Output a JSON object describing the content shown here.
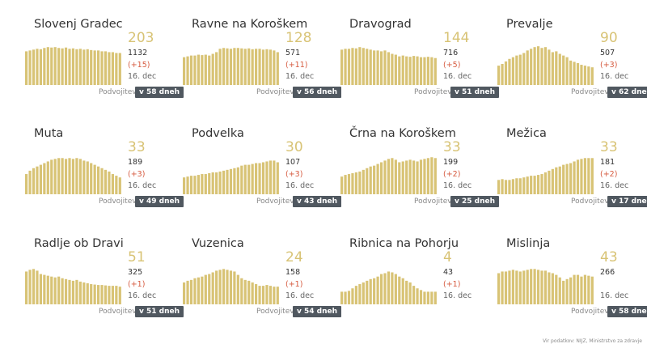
{
  "badge_prefix": "Podvojitev",
  "date_label": "16. dec",
  "bar_color": "#d8c375",
  "accent_color": "#d65a3f",
  "footer_text": "Vir podatkov: NIJZ, Ministrstvo za zdravje",
  "chart_data": [
    {
      "type": "bar",
      "title": "Slovenj Gradec",
      "latest": "203",
      "total": "1132",
      "delta": "(+15)",
      "doubling": "v 58 dneh",
      "values": [
        0.8,
        0.82,
        0.84,
        0.86,
        0.85,
        0.88,
        0.9,
        0.89,
        0.9,
        0.88,
        0.87,
        0.89,
        0.86,
        0.87,
        0.85,
        0.86,
        0.84,
        0.85,
        0.83,
        0.82,
        0.82,
        0.8,
        0.8,
        0.78,
        0.78,
        0.76,
        0.76
      ]
    },
    {
      "type": "bar",
      "title": "Ravne na Koroškem",
      "latest": "128",
      "total": "571",
      "delta": "(+11)",
      "doubling": "v 56 dneh",
      "values": [
        0.66,
        0.68,
        0.7,
        0.7,
        0.72,
        0.71,
        0.72,
        0.7,
        0.74,
        0.78,
        0.86,
        0.88,
        0.87,
        0.86,
        0.88,
        0.88,
        0.87,
        0.86,
        0.87,
        0.85,
        0.86,
        0.86,
        0.84,
        0.85,
        0.84,
        0.82,
        0.78
      ]
    },
    {
      "type": "bar",
      "title": "Dravograd",
      "latest": "144",
      "total": "716",
      "delta": "(+5)",
      "doubling": "v 51 dneh",
      "values": [
        0.84,
        0.86,
        0.86,
        0.88,
        0.87,
        0.9,
        0.88,
        0.86,
        0.84,
        0.82,
        0.82,
        0.8,
        0.82,
        0.78,
        0.74,
        0.72,
        0.68,
        0.7,
        0.68,
        0.67,
        0.69,
        0.68,
        0.66,
        0.66,
        0.67,
        0.66,
        0.64
      ]
    },
    {
      "type": "bar",
      "title": "Prevalje",
      "latest": "90",
      "total": "507",
      "delta": "(+3)",
      "doubling": "v 62 dneh",
      "values": [
        0.46,
        0.5,
        0.56,
        0.62,
        0.66,
        0.7,
        0.72,
        0.76,
        0.82,
        0.86,
        0.9,
        0.92,
        0.88,
        0.9,
        0.84,
        0.78,
        0.8,
        0.74,
        0.7,
        0.66,
        0.58,
        0.55,
        0.52,
        0.48,
        0.46,
        0.44,
        0.42
      ]
    },
    {
      "type": "bar",
      "title": "Muta",
      "latest": "33",
      "total": "189",
      "delta": "(+3)",
      "doubling": "v 49 dneh",
      "values": [
        0.48,
        0.56,
        0.62,
        0.66,
        0.7,
        0.74,
        0.78,
        0.82,
        0.84,
        0.86,
        0.86,
        0.84,
        0.86,
        0.84,
        0.86,
        0.84,
        0.8,
        0.78,
        0.74,
        0.7,
        0.66,
        0.62,
        0.58,
        0.54,
        0.48,
        0.44,
        0.4
      ]
    },
    {
      "type": "bar",
      "title": "Podvelka",
      "latest": "30",
      "total": "107",
      "delta": "(+3)",
      "doubling": "v 43 dneh",
      "values": [
        0.4,
        0.42,
        0.44,
        0.44,
        0.46,
        0.48,
        0.48,
        0.5,
        0.52,
        0.52,
        0.54,
        0.56,
        0.58,
        0.6,
        0.62,
        0.64,
        0.68,
        0.7,
        0.7,
        0.72,
        0.74,
        0.74,
        0.76,
        0.78,
        0.8,
        0.8,
        0.76
      ]
    },
    {
      "type": "bar",
      "title": "Črna na Koroškem",
      "latest": "33",
      "total": "199",
      "delta": "(+2)",
      "doubling": "v 25 dneh",
      "values": [
        0.42,
        0.46,
        0.48,
        0.5,
        0.52,
        0.54,
        0.58,
        0.62,
        0.66,
        0.68,
        0.72,
        0.76,
        0.8,
        0.84,
        0.86,
        0.82,
        0.76,
        0.78,
        0.8,
        0.82,
        0.8,
        0.78,
        0.82,
        0.84,
        0.86,
        0.88,
        0.86
      ]
    },
    {
      "type": "bar",
      "title": "Mežica",
      "latest": "33",
      "total": "181",
      "delta": "(+2)",
      "doubling": "v 17 dneh",
      "values": [
        0.34,
        0.36,
        0.34,
        0.34,
        0.36,
        0.38,
        0.38,
        0.4,
        0.42,
        0.44,
        0.44,
        0.46,
        0.48,
        0.52,
        0.56,
        0.6,
        0.64,
        0.66,
        0.7,
        0.72,
        0.74,
        0.78,
        0.82,
        0.84,
        0.86,
        0.86,
        0.86
      ]
    },
    {
      "type": "bar",
      "title": "Radlje ob Dravi",
      "latest": "51",
      "total": "325",
      "delta": "(+1)",
      "doubling": "v 51 dneh",
      "values": [
        0.78,
        0.82,
        0.84,
        0.8,
        0.72,
        0.7,
        0.68,
        0.66,
        0.64,
        0.66,
        0.62,
        0.6,
        0.58,
        0.56,
        0.58,
        0.54,
        0.52,
        0.5,
        0.48,
        0.47,
        0.46,
        0.46,
        0.45,
        0.44,
        0.44,
        0.44,
        0.42
      ]
    },
    {
      "type": "bar",
      "title": "Vuzenica",
      "latest": "24",
      "total": "158",
      "delta": "(+1)",
      "doubling": "v 54 dneh",
      "values": [
        0.52,
        0.56,
        0.58,
        0.62,
        0.64,
        0.66,
        0.7,
        0.72,
        0.76,
        0.8,
        0.82,
        0.84,
        0.82,
        0.8,
        0.78,
        0.7,
        0.62,
        0.58,
        0.56,
        0.52,
        0.48,
        0.44,
        0.44,
        0.46,
        0.44,
        0.42,
        0.42
      ]
    },
    {
      "type": "bar",
      "title": "Ribnica na Pohorju",
      "latest": "4",
      "total": "43",
      "delta": "(+1)",
      "doubling": "",
      "values": [
        0.3,
        0.3,
        0.32,
        0.38,
        0.44,
        0.48,
        0.52,
        0.56,
        0.6,
        0.62,
        0.66,
        0.72,
        0.74,
        0.78,
        0.76,
        0.72,
        0.66,
        0.62,
        0.56,
        0.52,
        0.44,
        0.38,
        0.34,
        0.3,
        0.3,
        0.3,
        0.3
      ]
    },
    {
      "type": "bar",
      "title": "Mislinja",
      "latest": "43",
      "total": "266",
      "delta": "",
      "doubling": "v 58 dneh",
      "values": [
        0.74,
        0.78,
        0.78,
        0.8,
        0.82,
        0.8,
        0.78,
        0.8,
        0.82,
        0.84,
        0.84,
        0.82,
        0.8,
        0.8,
        0.76,
        0.74,
        0.7,
        0.64,
        0.56,
        0.6,
        0.64,
        0.7,
        0.7,
        0.66,
        0.7,
        0.68,
        0.66
      ]
    }
  ]
}
